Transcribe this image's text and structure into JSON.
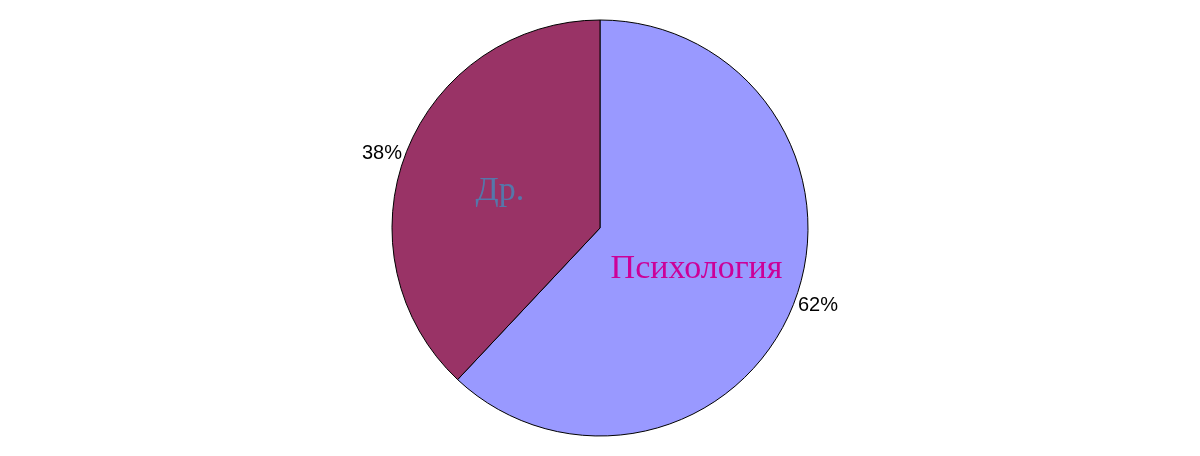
{
  "chart_data": {
    "type": "pie",
    "categories": [
      "Психология",
      "Др."
    ],
    "values": [
      62,
      38
    ],
    "colors": [
      "#9999ff",
      "#993366"
    ],
    "value_labels": [
      "62%",
      "38%"
    ],
    "legend": false
  }
}
